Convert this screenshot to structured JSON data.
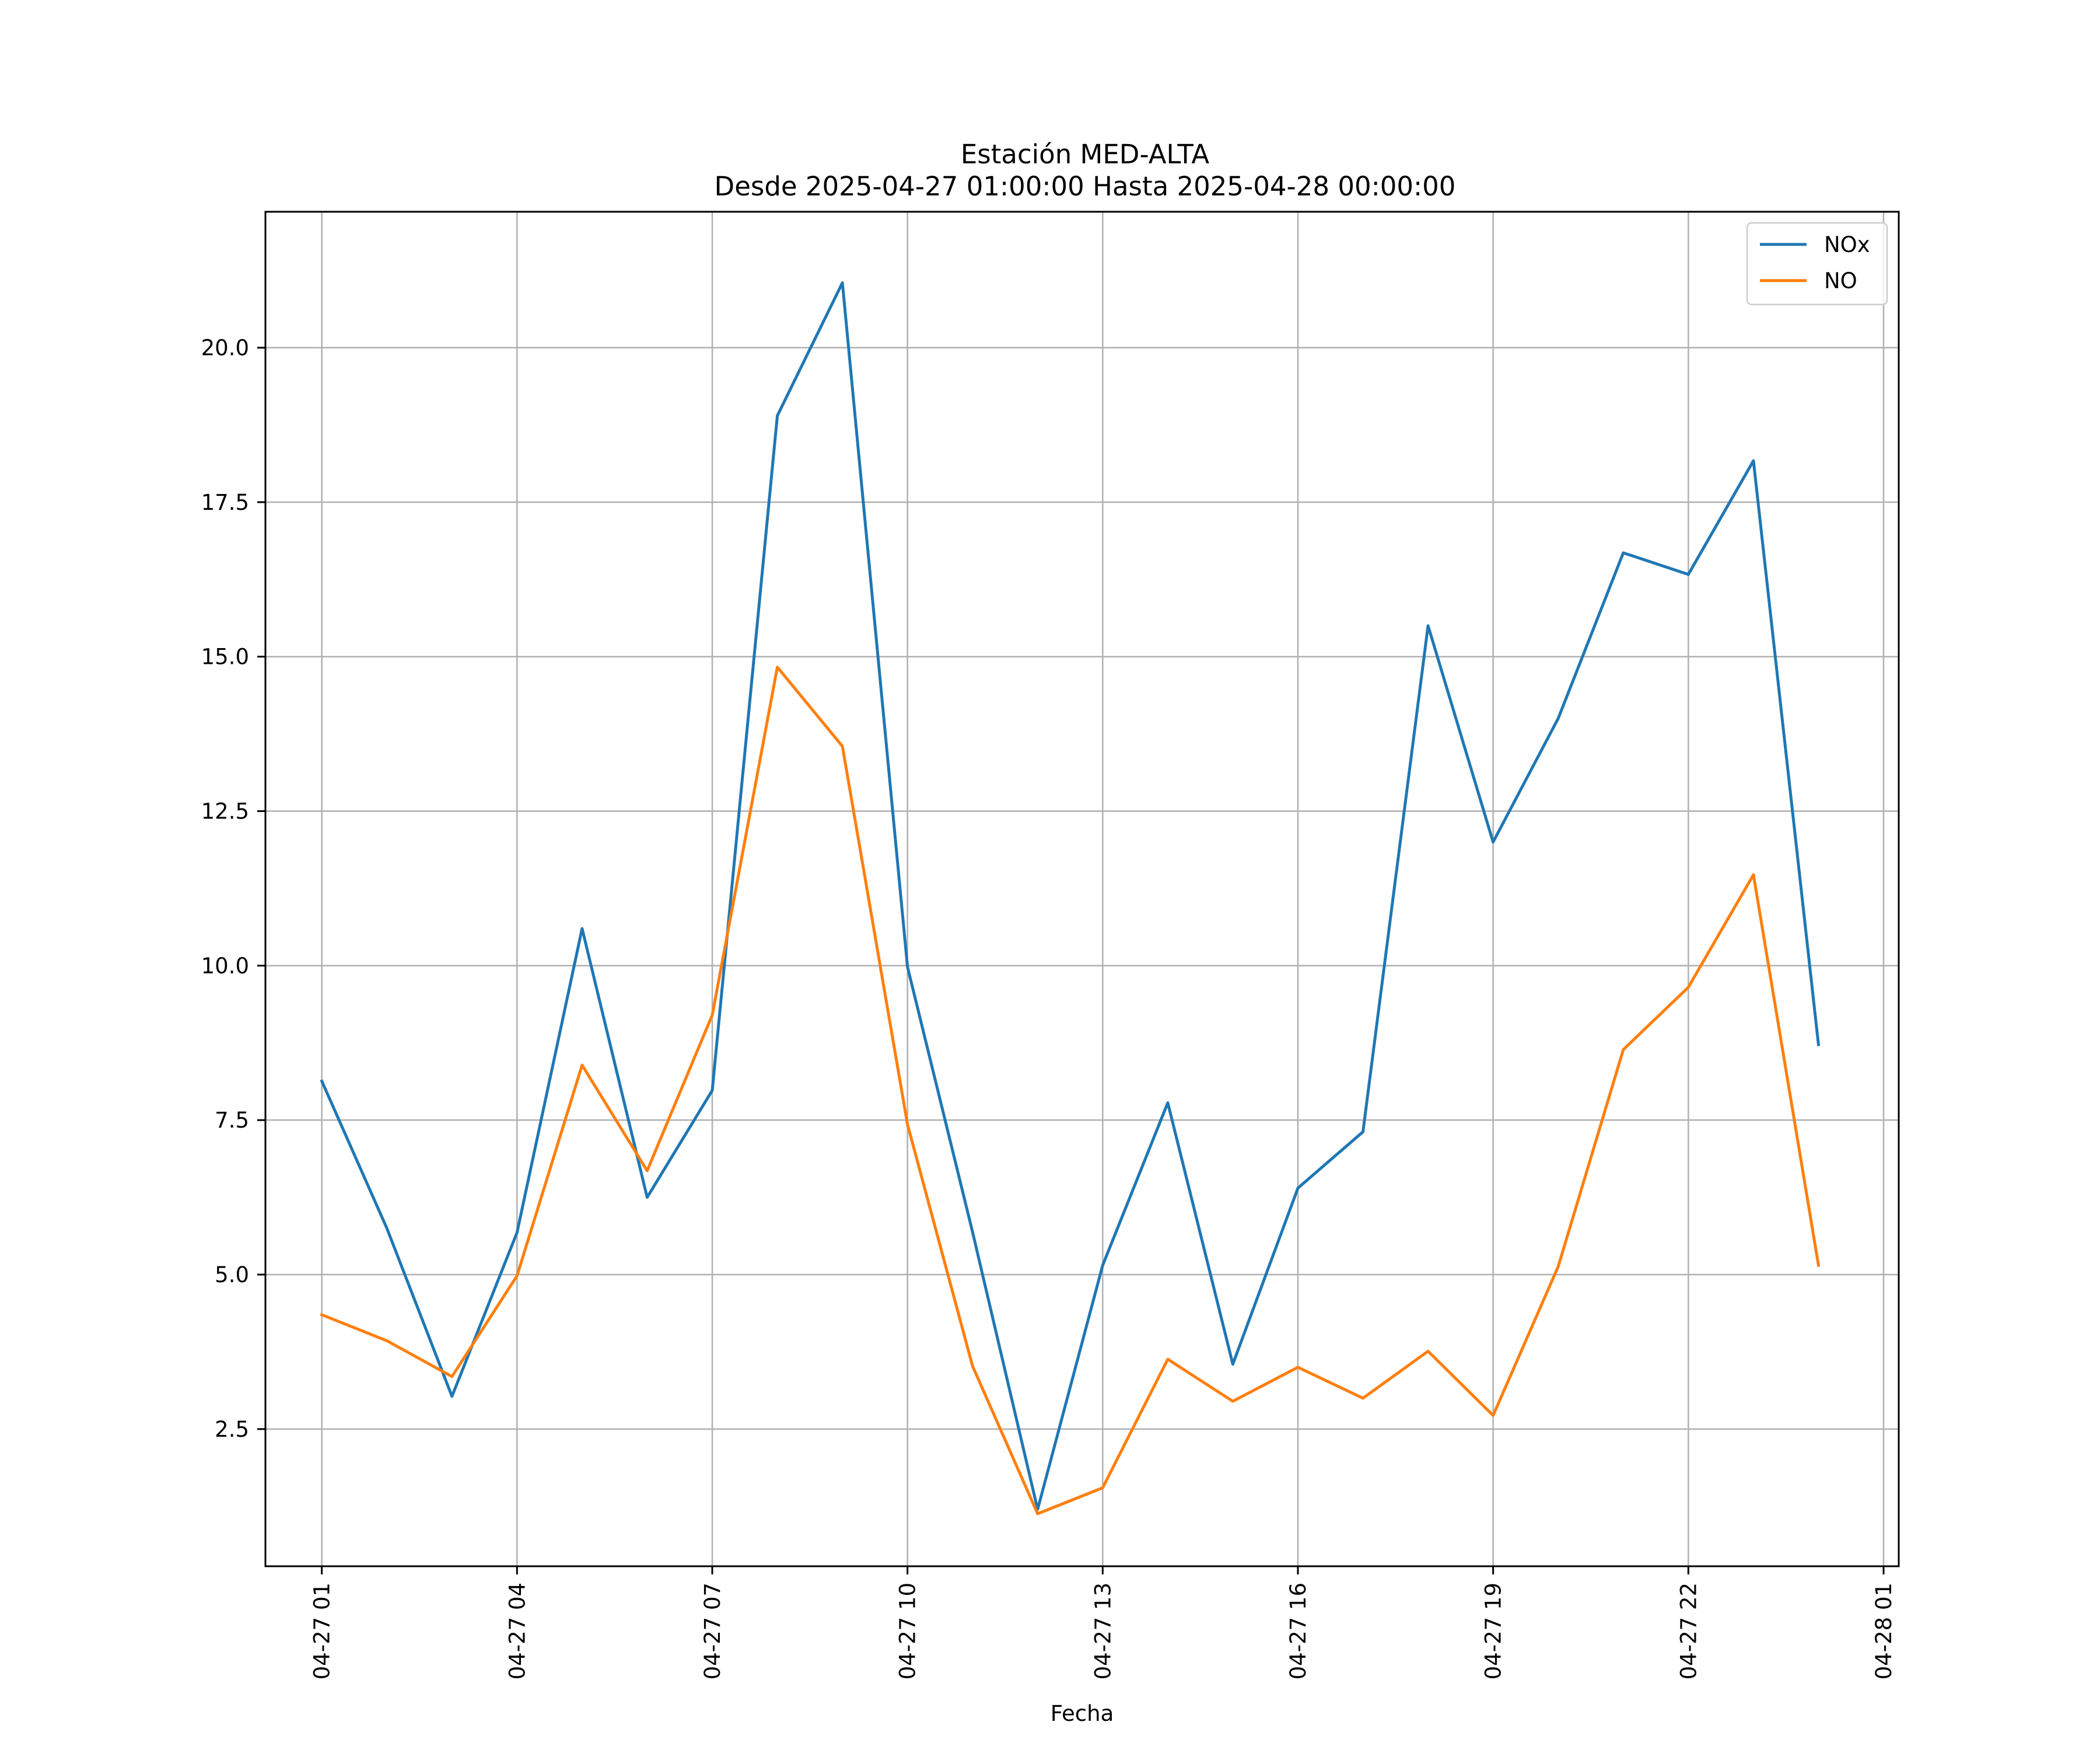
{
  "chart_data": {
    "type": "line",
    "title": "Estación MED-ALTA",
    "subtitle": "Desde 2025-04-27 01:00:00 Hasta 2025-04-28 00:00:00",
    "xlabel": "Fecha",
    "ylabel": "",
    "x": [
      "2025-04-27 01:00",
      "2025-04-27 02:00",
      "2025-04-27 03:00",
      "2025-04-27 04:00",
      "2025-04-27 05:00",
      "2025-04-27 06:00",
      "2025-04-27 07:00",
      "2025-04-27 08:00",
      "2025-04-27 09:00",
      "2025-04-27 10:00",
      "2025-04-27 11:00",
      "2025-04-27 12:00",
      "2025-04-27 13:00",
      "2025-04-27 14:00",
      "2025-04-27 15:00",
      "2025-04-27 16:00",
      "2025-04-27 17:00",
      "2025-04-27 18:00",
      "2025-04-27 19:00",
      "2025-04-27 20:00",
      "2025-04-27 21:00",
      "2025-04-27 22:00",
      "2025-04-27 23:00",
      "2025-04-28 00:00"
    ],
    "xlim": [
      "2025-04-27 00:08",
      "2025-04-28 01:14"
    ],
    "ylim": [
      0.28,
      22.2
    ],
    "x_ticks": [
      {
        "x": "2025-04-27 01:00",
        "label": "04-27 01"
      },
      {
        "x": "2025-04-27 04:00",
        "label": "04-27 04"
      },
      {
        "x": "2025-04-27 07:00",
        "label": "04-27 07"
      },
      {
        "x": "2025-04-27 10:00",
        "label": "04-27 10"
      },
      {
        "x": "2025-04-27 13:00",
        "label": "04-27 13"
      },
      {
        "x": "2025-04-27 16:00",
        "label": "04-27 16"
      },
      {
        "x": "2025-04-27 19:00",
        "label": "04-27 19"
      },
      {
        "x": "2025-04-27 22:00",
        "label": "04-27 22"
      },
      {
        "x": "2025-04-28 01:00",
        "label": "04-28 01"
      }
    ],
    "y_ticks": [
      {
        "value": 2.5,
        "label": "2.5"
      },
      {
        "value": 5.0,
        "label": "5.0"
      },
      {
        "value": 7.5,
        "label": "7.5"
      },
      {
        "value": 10.0,
        "label": "10.0"
      },
      {
        "value": 12.5,
        "label": "12.5"
      },
      {
        "value": 15.0,
        "label": "15.0"
      },
      {
        "value": 17.5,
        "label": "17.5"
      },
      {
        "value": 20.0,
        "label": "20.0"
      }
    ],
    "grid": true,
    "legend_position": "top-right",
    "series": [
      {
        "name": "NOx",
        "color": "#1f77b4",
        "values": [
          8.13,
          5.75,
          3.03,
          5.68,
          10.6,
          6.25,
          7.98,
          18.9,
          21.05,
          9.98,
          5.69,
          1.2,
          5.15,
          7.78,
          3.55,
          6.4,
          7.31,
          15.5,
          12.0,
          14.0,
          16.68,
          16.33,
          18.17,
          8.72
        ]
      },
      {
        "name": "NO",
        "color": "#ff7f0e",
        "values": [
          4.35,
          3.93,
          3.35,
          4.98,
          8.39,
          6.68,
          9.2,
          14.83,
          13.55,
          7.43,
          3.52,
          1.13,
          1.55,
          3.63,
          2.95,
          3.5,
          3.0,
          3.76,
          2.72,
          5.13,
          8.64,
          9.65,
          11.47,
          5.15
        ]
      }
    ]
  }
}
